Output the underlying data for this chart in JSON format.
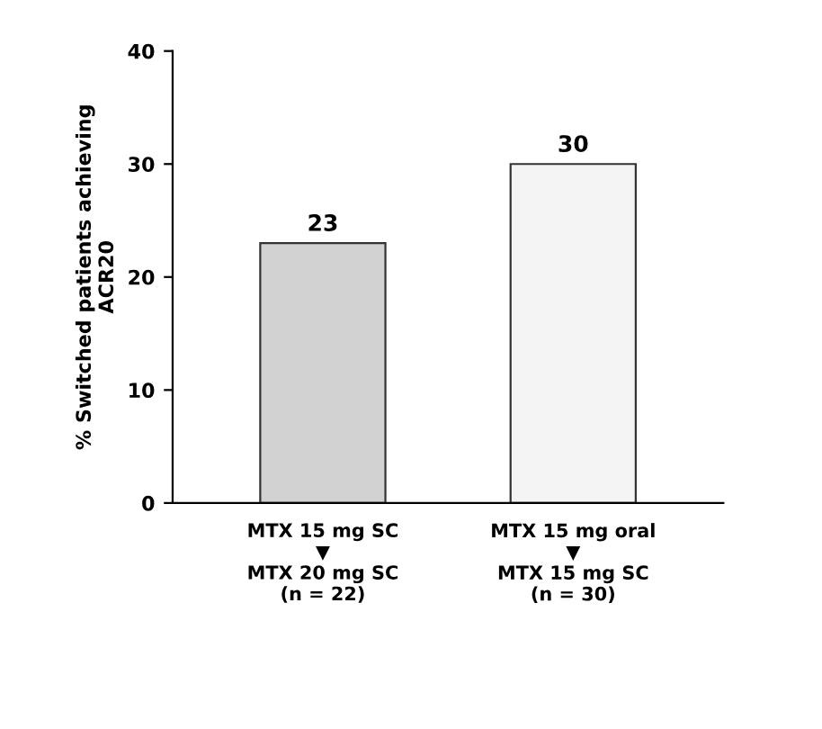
{
  "chart_data": {
    "type": "bar",
    "ylabel": "% Switched patients achieving\nACR20",
    "categories": [
      "MTX 15 mg SC\n▼\nMTX 20 mg SC\n(n = 22)",
      "MTX 15 mg oral\n▼\nMTX 15 mg SC\n(n = 30)"
    ],
    "values": [
      23,
      30
    ],
    "colors": [
      "#d2d2d2",
      "#f4f4f4"
    ],
    "ylim": [
      0,
      40
    ],
    "yticks": [
      0,
      10,
      20,
      30,
      40
    ],
    "data_labels": true,
    "grid": false,
    "legend": false
  }
}
